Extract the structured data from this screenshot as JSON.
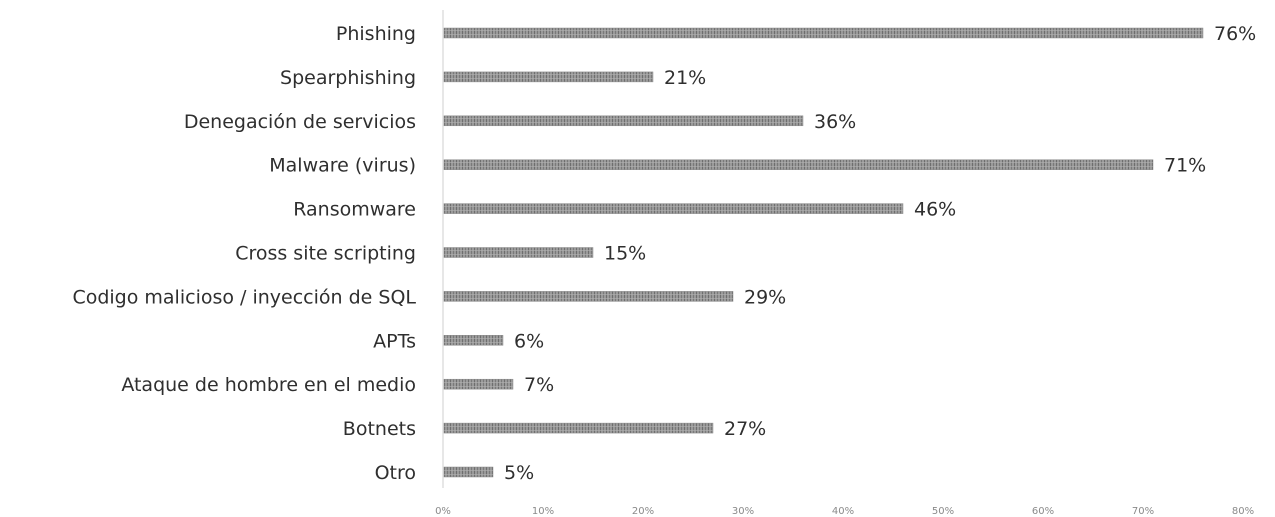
{
  "chart_data": {
    "type": "bar",
    "orientation": "horizontal",
    "title": "",
    "xlabel": "",
    "ylabel": "",
    "categories": [
      "Phishing",
      "Spearphishing",
      "Denegación de servicios",
      "Malware (virus)",
      "Ransomware",
      "Cross site scripting",
      "Codigo malicioso / inyección de SQL",
      "APTs",
      "Ataque de hombre en el medio",
      "Botnets",
      "Otro"
    ],
    "values": [
      76,
      21,
      36,
      71,
      46,
      15,
      29,
      6,
      7,
      27,
      5
    ],
    "value_labels": [
      "76%",
      "21%",
      "36%",
      "71%",
      "46%",
      "15%",
      "29%",
      "6%",
      "7%",
      "27%",
      "5%"
    ],
    "xlim": [
      0,
      80
    ],
    "x_ticks": [
      0,
      10,
      20,
      30,
      40,
      50,
      60,
      70,
      80
    ],
    "x_tick_labels": [
      "0%",
      "10%",
      "20%",
      "30%",
      "40%",
      "50%",
      "60%",
      "70%",
      "80%"
    ],
    "grid": false,
    "legend": "none",
    "bar_color": "#8c8c8c"
  }
}
